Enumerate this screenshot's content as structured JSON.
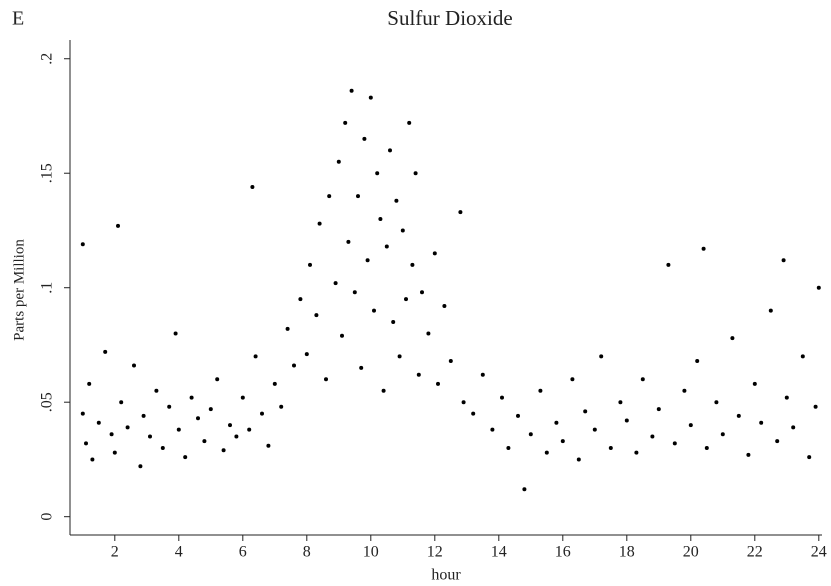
{
  "chart_data": {
    "type": "scatter",
    "panel_label": "E",
    "title": "Sulfur Dioxide",
    "x_label": "hour",
    "y_label": "Parts per Million",
    "color": "#000000",
    "xlim": [
      0.6,
      24.1
    ],
    "ylim": [
      -0.008,
      0.206
    ],
    "xticks": [
      2,
      4,
      6,
      8,
      10,
      12,
      14,
      16,
      18,
      20,
      22,
      24
    ],
    "yticks": [
      0,
      {
        "value": 0.05,
        "label": ".05"
      },
      {
        "value": 0.1,
        "label": ".1"
      },
      {
        "value": 0.15,
        "label": ".15"
      },
      {
        "value": 0.2,
        "label": ".2"
      }
    ],
    "grid": false,
    "x": [
      1.0,
      1.1,
      1.2,
      1.3,
      1.5,
      1.7,
      1.9,
      2.0,
      2.2,
      2.4,
      2.6,
      2.8,
      2.9,
      3.1,
      3.3,
      3.5,
      3.7,
      3.9,
      4.0,
      4.2,
      4.4,
      4.6,
      4.8,
      5.0,
      5.2,
      5.4,
      5.6,
      5.8,
      6.0,
      6.2,
      6.4,
      6.6,
      6.8,
      7.0,
      7.2,
      7.4,
      7.6,
      7.8,
      8.0,
      8.1,
      8.3,
      8.4,
      8.6,
      8.7,
      8.9,
      9.0,
      9.1,
      9.2,
      9.3,
      9.4,
      9.5,
      9.6,
      9.7,
      9.8,
      9.9,
      10.0,
      10.1,
      10.2,
      10.3,
      10.4,
      10.5,
      10.6,
      10.7,
      10.8,
      10.9,
      11.0,
      11.1,
      11.2,
      11.3,
      11.4,
      11.5,
      11.6,
      11.8,
      12.0,
      12.1,
      12.3,
      12.5,
      12.8,
      12.9,
      6.3,
      2.1,
      1.0,
      20.4,
      22.9,
      13.2,
      13.5,
      13.8,
      14.1,
      14.3,
      14.6,
      14.8,
      15.0,
      15.3,
      15.5,
      15.8,
      16.0,
      16.3,
      16.5,
      16.7,
      17.0,
      17.2,
      17.5,
      17.8,
      18.0,
      18.3,
      18.5,
      18.8,
      19.0,
      19.3,
      19.5,
      19.8,
      20.0,
      20.2,
      20.5,
      20.8,
      21.0,
      21.3,
      21.5,
      21.8,
      22.0,
      22.2,
      22.5,
      22.7,
      23.0,
      23.2,
      23.5,
      23.7,
      23.9,
      24.0
    ],
    "values": [
      0.045,
      0.032,
      0.058,
      0.025,
      0.041,
      0.072,
      0.036,
      0.028,
      0.05,
      0.039,
      0.066,
      0.022,
      0.044,
      0.035,
      0.055,
      0.03,
      0.048,
      0.08,
      0.038,
      0.026,
      0.052,
      0.043,
      0.033,
      0.047,
      0.06,
      0.029,
      0.04,
      0.035,
      0.052,
      0.038,
      0.07,
      0.045,
      0.031,
      0.058,
      0.048,
      0.082,
      0.066,
      0.095,
      0.071,
      0.11,
      0.088,
      0.128,
      0.06,
      0.14,
      0.102,
      0.155,
      0.079,
      0.172,
      0.12,
      0.186,
      0.098,
      0.14,
      0.065,
      0.165,
      0.112,
      0.183,
      0.09,
      0.15,
      0.13,
      0.055,
      0.118,
      0.16,
      0.085,
      0.138,
      0.07,
      0.125,
      0.095,
      0.172,
      0.11,
      0.15,
      0.062,
      0.098,
      0.08,
      0.115,
      0.058,
      0.092,
      0.068,
      0.133,
      0.05,
      0.144,
      0.127,
      0.119,
      0.117,
      0.112,
      0.045,
      0.062,
      0.038,
      0.052,
      0.03,
      0.044,
      0.012,
      0.036,
      0.055,
      0.028,
      0.041,
      0.033,
      0.06,
      0.025,
      0.046,
      0.038,
      0.07,
      0.03,
      0.05,
      0.042,
      0.028,
      0.06,
      0.035,
      0.047,
      0.11,
      0.032,
      0.055,
      0.04,
      0.068,
      0.03,
      0.05,
      0.036,
      0.078,
      0.044,
      0.027,
      0.058,
      0.041,
      0.09,
      0.033,
      0.052,
      0.039,
      0.07,
      0.026,
      0.048,
      0.1
    ]
  }
}
